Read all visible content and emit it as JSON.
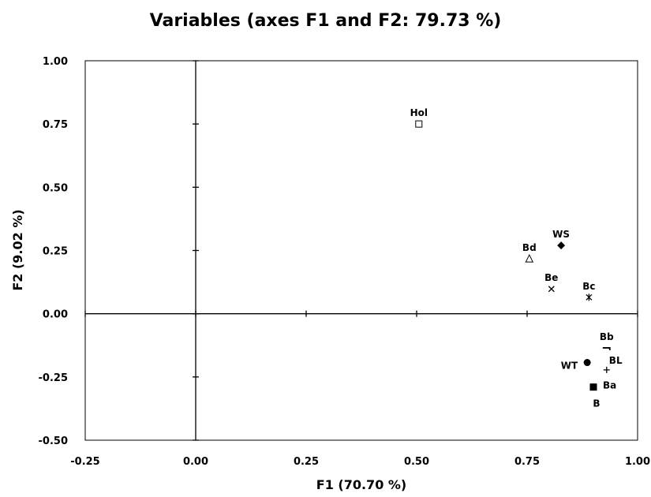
{
  "chart_data": {
    "type": "scatter",
    "title": "Variables (axes F1 and F2: 79.73 %)",
    "xlabel": "F1 (70.70 %)",
    "ylabel": "F2 (9.02 %)",
    "xlim": [
      -0.25,
      1.0
    ],
    "ylim": [
      -0.5,
      1.0
    ],
    "xticks": [
      "-0.25",
      "0.00",
      "0.25",
      "0.50",
      "0.75",
      "1.00"
    ],
    "yticks": [
      "-0.50",
      "-0.25",
      "0.00",
      "0.25",
      "0.50",
      "0.75",
      "1.00"
    ],
    "grid": false,
    "legend": "none",
    "points": [
      {
        "label": "Hol",
        "x": 0.505,
        "y": 0.75,
        "marker": "open-square",
        "label_pos": "above"
      },
      {
        "label": "WS",
        "x": 0.827,
        "y": 0.27,
        "marker": "diamond",
        "label_pos": "above"
      },
      {
        "label": "Bd",
        "x": 0.755,
        "y": 0.217,
        "marker": "open-triangle",
        "label_pos": "above"
      },
      {
        "label": "Be",
        "x": 0.805,
        "y": 0.098,
        "marker": "x",
        "label_pos": "above"
      },
      {
        "label": "Bc",
        "x": 0.89,
        "y": 0.065,
        "marker": "star",
        "label_pos": "above"
      },
      {
        "label": "Bb",
        "x": 0.93,
        "y": -0.135,
        "marker": "dash",
        "label_pos": "above"
      },
      {
        "label": "BL",
        "x": 0.93,
        "y": -0.222,
        "marker": "plus",
        "label_pos": "right"
      },
      {
        "label": "WT",
        "x": 0.886,
        "y": -0.193,
        "marker": "circle",
        "label_pos": "left"
      },
      {
        "label": "Ba",
        "x": 0.9,
        "y": -0.29,
        "marker": "square",
        "label_pos": "right"
      },
      {
        "label": "B",
        "x": 0.9,
        "y": -0.29,
        "marker": "none",
        "label_pos": "below"
      }
    ]
  }
}
